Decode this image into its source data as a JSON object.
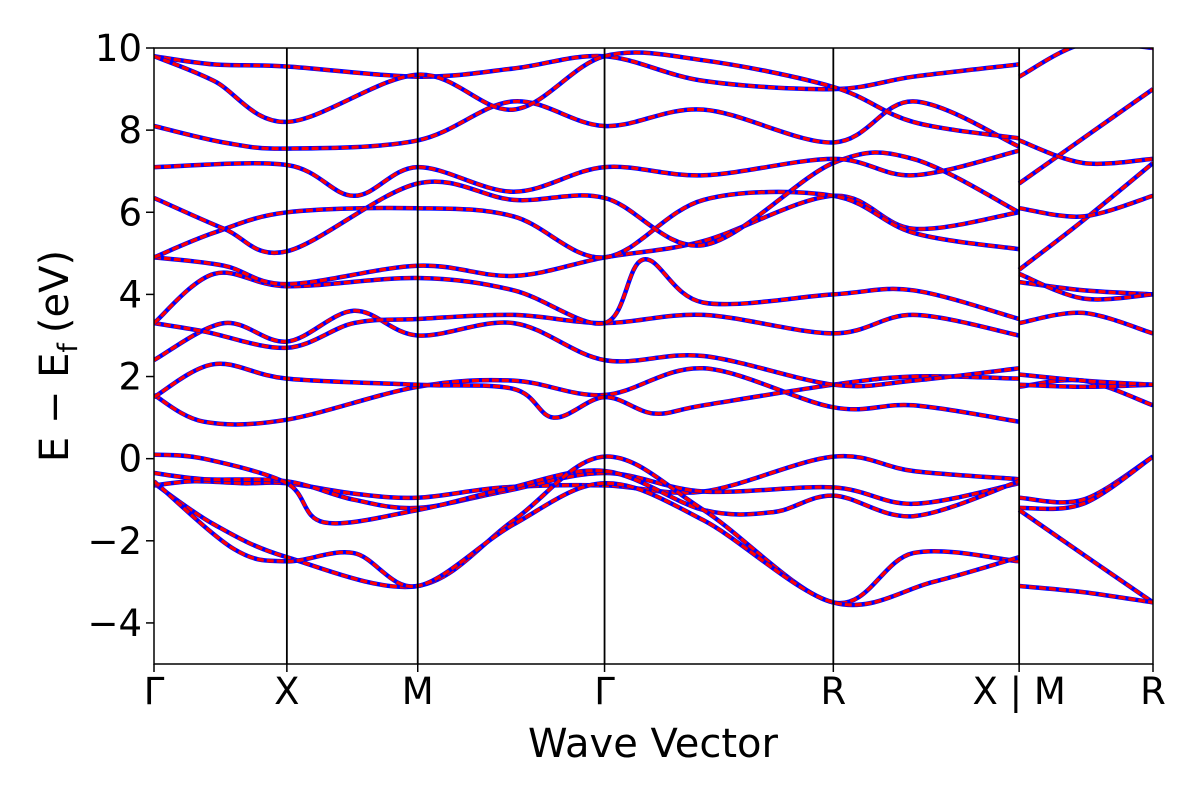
{
  "chart_data": {
    "type": "line",
    "xlabel": "Wave Vector",
    "ylabel": {
      "main": "E − E",
      "sub": "f",
      "unit": "(eV)"
    },
    "ylim": [
      -5,
      10
    ],
    "y_ticks": [
      "−4",
      "−2",
      "0",
      "2",
      "4",
      "6",
      "8",
      "10"
    ],
    "y_tick_values": [
      -4,
      -2,
      0,
      2,
      4,
      6,
      8,
      10
    ],
    "k_path": [
      {
        "label": "Γ",
        "k": 0.0
      },
      {
        "label": "X",
        "k": 0.133
      },
      {
        "label": "M",
        "k": 0.264
      },
      {
        "label": "Γ",
        "k": 0.451
      },
      {
        "label": "R",
        "k": 0.68
      },
      {
        "label": "X | M",
        "k": 0.866
      },
      {
        "label": "R",
        "k": 1.0
      }
    ],
    "grid": false,
    "legend": "none",
    "colors": {
      "line_primary": "#ff0000",
      "line_overlay": "#0000ff",
      "axes": "#000000"
    },
    "series": [
      {
        "values": [
          [
            0,
            -0.65
          ],
          [
            0.04,
            -0.55
          ],
          [
            0.09,
            -0.6
          ],
          [
            0.133,
            -0.6
          ],
          [
            0.2,
            -0.85
          ],
          [
            0.264,
            -0.95
          ],
          [
            0.35,
            -0.7
          ],
          [
            0.451,
            -0.65
          ],
          [
            0.55,
            -0.8
          ],
          [
            0.68,
            0.05
          ],
          [
            0.76,
            -0.3
          ],
          [
            0.866,
            -0.5
          ]
        ]
      },
      {
        "values": [
          [
            0,
            -0.35
          ],
          [
            0.05,
            -0.5
          ],
          [
            0.133,
            -0.55
          ],
          [
            0.2,
            -1.0
          ],
          [
            0.264,
            -1.2
          ],
          [
            0.35,
            -0.8
          ],
          [
            0.451,
            -0.35
          ],
          [
            0.55,
            -0.8
          ],
          [
            0.68,
            -0.7
          ],
          [
            0.76,
            -1.1
          ],
          [
            0.866,
            -0.6
          ]
        ]
      },
      {
        "values": [
          [
            0,
            0.1
          ],
          [
            0.05,
            0.0
          ],
          [
            0.133,
            -0.6
          ],
          [
            0.17,
            -1.55
          ],
          [
            0.264,
            -1.25
          ],
          [
            0.35,
            -0.75
          ],
          [
            0.451,
            -0.3
          ],
          [
            0.55,
            -1.25
          ],
          [
            0.62,
            -1.3
          ],
          [
            0.68,
            -0.9
          ],
          [
            0.76,
            -1.4
          ],
          [
            0.866,
            -0.55
          ]
        ]
      },
      {
        "values": [
          [
            0,
            -0.6
          ],
          [
            0.06,
            -1.6
          ],
          [
            0.133,
            -2.4
          ],
          [
            0.264,
            -3.1
          ],
          [
            0.36,
            -1.5
          ],
          [
            0.451,
            0.05
          ],
          [
            0.55,
            -1.25
          ],
          [
            0.68,
            -3.5
          ],
          [
            0.76,
            -2.3
          ],
          [
            0.866,
            -2.5
          ]
        ]
      },
      {
        "values": [
          [
            0,
            -0.55
          ],
          [
            0.08,
            -2.2
          ],
          [
            0.133,
            -2.5
          ],
          [
            0.2,
            -2.3
          ],
          [
            0.264,
            -3.1
          ],
          [
            0.36,
            -1.6
          ],
          [
            0.451,
            -0.6
          ],
          [
            0.55,
            -1.5
          ],
          [
            0.68,
            -3.5
          ],
          [
            0.78,
            -3.0
          ],
          [
            0.866,
            -2.4
          ]
        ]
      },
      {
        "values": [
          [
            0,
            1.55
          ],
          [
            0.05,
            0.9
          ],
          [
            0.133,
            0.95
          ],
          [
            0.264,
            1.75
          ],
          [
            0.36,
            1.9
          ],
          [
            0.451,
            1.55
          ],
          [
            0.55,
            2.2
          ],
          [
            0.68,
            1.25
          ],
          [
            0.76,
            1.3
          ],
          [
            0.866,
            0.9
          ]
        ]
      },
      {
        "values": [
          [
            0,
            1.5
          ],
          [
            0.06,
            2.3
          ],
          [
            0.133,
            1.95
          ],
          [
            0.264,
            1.8
          ],
          [
            0.36,
            1.7
          ],
          [
            0.4,
            1.0
          ],
          [
            0.451,
            1.5
          ],
          [
            0.5,
            1.1
          ],
          [
            0.55,
            1.3
          ],
          [
            0.68,
            1.8
          ],
          [
            0.76,
            2.0
          ],
          [
            0.866,
            1.95
          ]
        ]
      },
      {
        "values": [
          [
            0,
            2.4
          ],
          [
            0.07,
            3.3
          ],
          [
            0.133,
            2.85
          ],
          [
            0.2,
            3.6
          ],
          [
            0.264,
            3.0
          ],
          [
            0.36,
            3.3
          ],
          [
            0.451,
            2.4
          ],
          [
            0.55,
            2.5
          ],
          [
            0.68,
            1.8
          ],
          [
            0.76,
            1.9
          ],
          [
            0.866,
            2.2
          ]
        ]
      },
      {
        "values": [
          [
            0,
            3.3
          ],
          [
            0.05,
            3.1
          ],
          [
            0.133,
            2.7
          ],
          [
            0.2,
            3.3
          ],
          [
            0.264,
            3.4
          ],
          [
            0.36,
            3.5
          ],
          [
            0.451,
            3.3
          ],
          [
            0.55,
            3.5
          ],
          [
            0.68,
            3.05
          ],
          [
            0.76,
            3.5
          ],
          [
            0.866,
            3.0
          ]
        ]
      },
      {
        "values": [
          [
            0,
            3.3
          ],
          [
            0.06,
            4.5
          ],
          [
            0.133,
            4.2
          ],
          [
            0.264,
            4.4
          ],
          [
            0.36,
            4.1
          ],
          [
            0.451,
            3.3
          ],
          [
            0.49,
            4.85
          ],
          [
            0.55,
            3.8
          ],
          [
            0.68,
            4.0
          ],
          [
            0.76,
            4.1
          ],
          [
            0.866,
            3.4
          ]
        ]
      },
      {
        "values": [
          [
            0,
            4.9
          ],
          [
            0.07,
            4.7
          ],
          [
            0.133,
            4.25
          ],
          [
            0.264,
            4.7
          ],
          [
            0.36,
            4.45
          ],
          [
            0.451,
            4.9
          ],
          [
            0.55,
            5.3
          ],
          [
            0.68,
            6.4
          ],
          [
            0.76,
            5.6
          ],
          [
            0.866,
            6.0
          ]
        ]
      },
      {
        "values": [
          [
            0,
            4.9
          ],
          [
            0.06,
            5.5
          ],
          [
            0.133,
            6.0
          ],
          [
            0.264,
            6.1
          ],
          [
            0.36,
            5.9
          ],
          [
            0.451,
            4.9
          ],
          [
            0.55,
            6.3
          ],
          [
            0.68,
            6.4
          ],
          [
            0.76,
            5.5
          ],
          [
            0.866,
            5.1
          ]
        ]
      },
      {
        "values": [
          [
            0,
            6.35
          ],
          [
            0.07,
            5.6
          ],
          [
            0.133,
            5.05
          ],
          [
            0.264,
            6.7
          ],
          [
            0.36,
            6.3
          ],
          [
            0.451,
            6.35
          ],
          [
            0.55,
            5.2
          ],
          [
            0.68,
            7.2
          ],
          [
            0.76,
            7.3
          ],
          [
            0.866,
            6.0
          ]
        ]
      },
      {
        "values": [
          [
            0,
            7.1
          ],
          [
            0.133,
            7.15
          ],
          [
            0.2,
            6.4
          ],
          [
            0.264,
            7.1
          ],
          [
            0.36,
            6.5
          ],
          [
            0.451,
            7.1
          ],
          [
            0.55,
            6.9
          ],
          [
            0.68,
            7.3
          ],
          [
            0.76,
            6.9
          ],
          [
            0.866,
            7.5
          ]
        ]
      },
      {
        "values": [
          [
            0,
            8.1
          ],
          [
            0.07,
            7.7
          ],
          [
            0.133,
            7.55
          ],
          [
            0.264,
            7.75
          ],
          [
            0.36,
            8.7
          ],
          [
            0.451,
            8.1
          ],
          [
            0.55,
            8.5
          ],
          [
            0.68,
            7.7
          ],
          [
            0.76,
            8.7
          ],
          [
            0.866,
            7.6
          ]
        ]
      },
      {
        "values": [
          [
            0,
            9.8
          ],
          [
            0.06,
            9.6
          ],
          [
            0.133,
            9.55
          ],
          [
            0.264,
            9.3
          ],
          [
            0.36,
            9.5
          ],
          [
            0.451,
            9.8
          ],
          [
            0.55,
            9.2
          ],
          [
            0.68,
            9.0
          ],
          [
            0.76,
            9.3
          ],
          [
            0.866,
            9.6
          ]
        ]
      },
      {
        "values": [
          [
            0,
            9.8
          ],
          [
            0.06,
            9.2
          ],
          [
            0.133,
            8.2
          ],
          [
            0.264,
            9.35
          ],
          [
            0.36,
            8.5
          ],
          [
            0.451,
            9.8
          ],
          [
            0.55,
            9.7
          ],
          [
            0.68,
            9.05
          ],
          [
            0.76,
            8.2
          ],
          [
            0.866,
            7.8
          ]
        ]
      },
      {
        "values": [
          [
            0.866,
            -0.95
          ],
          [
            0.93,
            -1.0
          ],
          [
            1.0,
            0.05
          ]
        ]
      },
      {
        "values": [
          [
            0.866,
            -1.2
          ],
          [
            0.93,
            -1.1
          ],
          [
            1.0,
            0.05
          ]
        ]
      },
      {
        "values": [
          [
            0.866,
            -1.25
          ],
          [
            0.94,
            -2.5
          ],
          [
            1.0,
            -3.5
          ]
        ]
      },
      {
        "values": [
          [
            0.866,
            -3.1
          ],
          [
            0.93,
            -3.25
          ],
          [
            1.0,
            -3.5
          ]
        ]
      },
      {
        "values": [
          [
            0.866,
            1.75
          ],
          [
            0.93,
            1.9
          ],
          [
            1.0,
            1.3
          ]
        ]
      },
      {
        "values": [
          [
            0.866,
            1.8
          ],
          [
            0.93,
            1.75
          ],
          [
            1.0,
            1.8
          ]
        ]
      },
      {
        "values": [
          [
            0.866,
            2.05
          ],
          [
            0.93,
            1.9
          ],
          [
            1.0,
            1.8
          ]
        ]
      },
      {
        "values": [
          [
            0.866,
            3.3
          ],
          [
            0.93,
            3.55
          ],
          [
            1.0,
            3.05
          ]
        ]
      },
      {
        "values": [
          [
            0.866,
            4.3
          ],
          [
            0.93,
            4.1
          ],
          [
            1.0,
            4.0
          ]
        ]
      },
      {
        "values": [
          [
            0.866,
            4.5
          ],
          [
            0.93,
            3.9
          ],
          [
            1.0,
            4.0
          ]
        ]
      },
      {
        "values": [
          [
            0.866,
            4.6
          ],
          [
            0.93,
            5.8
          ],
          [
            1.0,
            7.2
          ]
        ]
      },
      {
        "values": [
          [
            0.866,
            6.1
          ],
          [
            0.93,
            5.9
          ],
          [
            1.0,
            6.4
          ]
        ]
      },
      {
        "values": [
          [
            0.866,
            6.7
          ],
          [
            0.93,
            7.8
          ],
          [
            1.0,
            9.0
          ]
        ]
      },
      {
        "values": [
          [
            0.866,
            7.75
          ],
          [
            0.93,
            7.2
          ],
          [
            1.0,
            7.3
          ]
        ]
      },
      {
        "values": [
          [
            0.866,
            9.3
          ],
          [
            0.93,
            10.1
          ],
          [
            1.0,
            10.0
          ]
        ]
      }
    ]
  }
}
